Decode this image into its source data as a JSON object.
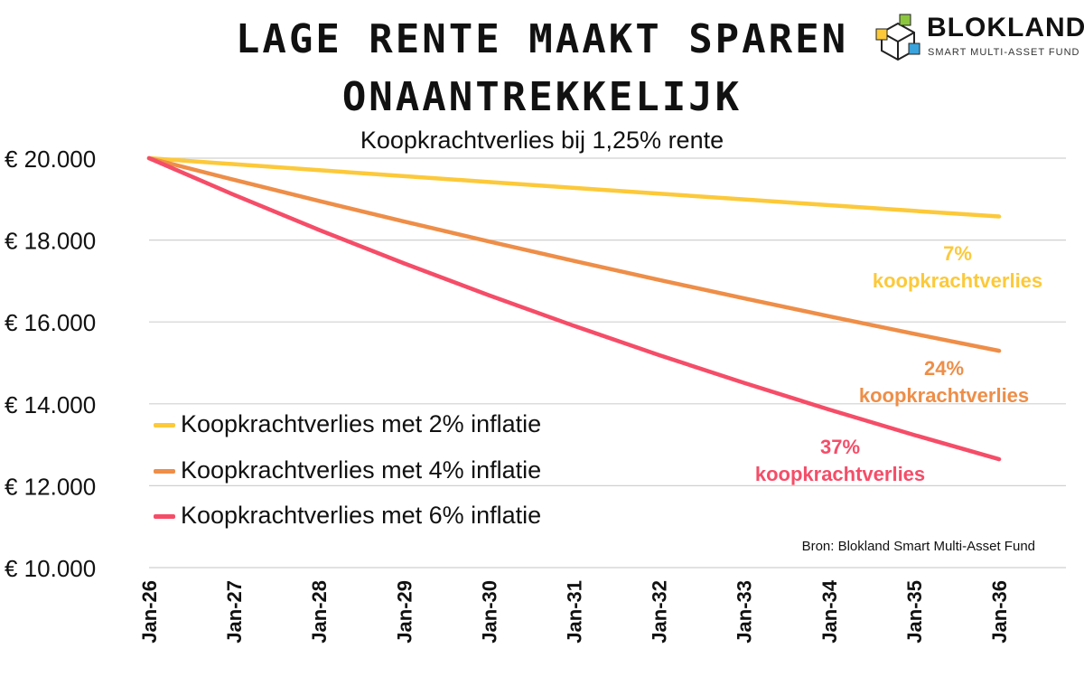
{
  "title_line1": "LAGE RENTE MAAKT SPAREN",
  "title_line2": "ONAANTREKKELIJK",
  "subtitle": "Koopkrachtverlies bij 1,25% rente",
  "brand": {
    "name": "BLOKLAND",
    "tagline": "SMART MULTI-ASSET FUND"
  },
  "source": "Bron: Blokland Smart Multi-Asset Fund",
  "colors": {
    "yellow": "#fcc93a",
    "orange": "#ee8e48",
    "red": "#f54d68",
    "grid": "#d0d0d0"
  },
  "chart_data": {
    "type": "line",
    "x": [
      "Jan-26",
      "Jan-27",
      "Jan-28",
      "Jan-29",
      "Jan-30",
      "Jan-31",
      "Jan-32",
      "Jan-33",
      "Jan-34",
      "Jan-35",
      "Jan-36"
    ],
    "y_ticks": [
      "€ 20.000",
      "€ 18.000",
      "€ 16.000",
      "€ 14.000",
      "€ 12.000",
      "€ 10.000"
    ],
    "ylim": [
      10000,
      20000
    ],
    "grid": true,
    "legend_position": "lower-left",
    "series": [
      {
        "name": "Koopkrachtverlies met 2% inflatie",
        "color": "#fcc93a",
        "values": [
          20000,
          19853,
          19707,
          19562,
          19418,
          19275,
          19133,
          18992,
          18852,
          18713,
          18575
        ]
      },
      {
        "name": "Koopkrachtverlies met 4% inflatie",
        "color": "#ee8e48",
        "values": [
          20000,
          19471,
          18956,
          18454,
          17966,
          17490,
          17027,
          16577,
          16138,
          15711,
          15295
        ]
      },
      {
        "name": "Koopkrachtverlies met 6% inflatie",
        "color": "#f54d68",
        "values": [
          20000,
          19104,
          18248,
          17431,
          16650,
          15904,
          15191,
          14511,
          13861,
          13240,
          12647
        ]
      }
    ],
    "annotations": [
      {
        "line1": "7%",
        "line2": "koopkrachtverlies",
        "color": "#fcc93a"
      },
      {
        "line1": "24%",
        "line2": "koopkrachtverlies",
        "color": "#ee8e48"
      },
      {
        "line1": "37%",
        "line2": "koopkrachtverlies",
        "color": "#f54d68"
      }
    ]
  }
}
